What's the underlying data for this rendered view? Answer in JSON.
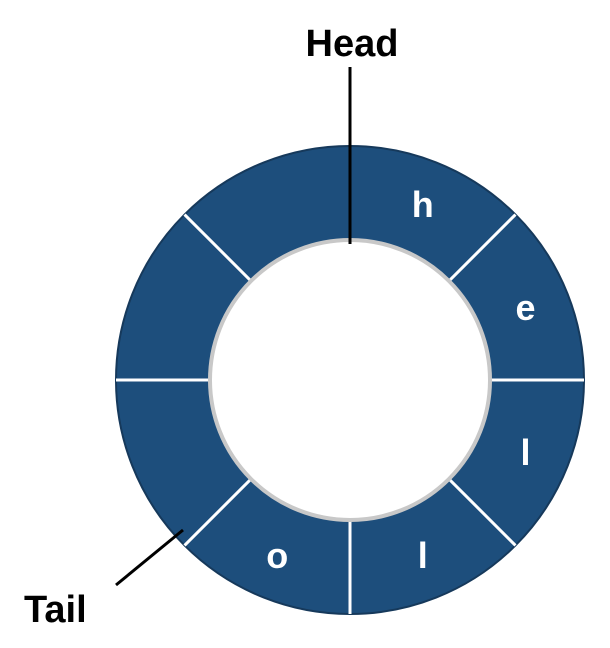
{
  "labels": {
    "head": "Head",
    "tail": "Tail"
  },
  "buffer": {
    "slot_count": 8,
    "slots": [
      "h",
      "e",
      "l",
      "l",
      "o",
      "",
      "",
      ""
    ],
    "head_index": 0,
    "tail_index": 5
  },
  "colors": {
    "ring_fill": "#1d4e7c",
    "ring_stroke": "#16395b",
    "divider": "#ffffff",
    "inner_edge": "#c8c8c8",
    "pointer": "#000000",
    "text_on_ring": "#ffffff"
  }
}
